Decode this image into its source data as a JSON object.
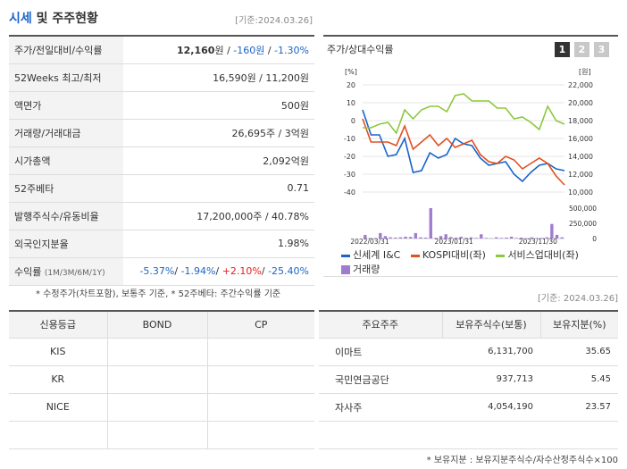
{
  "header": {
    "title_accent": "시세",
    "title_rest": " 및 주주현황",
    "date": "[기준:2024.03.26]"
  },
  "stats": [
    {
      "label": "주가/전일대비/수익률"
    },
    {
      "label": "52Weeks 최고/최저",
      "value": "16,590원 / 11,200원"
    },
    {
      "label": "액면가",
      "value": "500원"
    },
    {
      "label": "거래량/거래대금",
      "value": "26,695주 / 3억원"
    },
    {
      "label": "시가총액",
      "value": "2,092억원"
    },
    {
      "label": "52주베타",
      "value": "0.71"
    },
    {
      "label": "발행주식수/유동비율",
      "value": "17,200,000주 / 40.78%"
    },
    {
      "label": "외국인지분율",
      "value": "1.98%"
    },
    {
      "label": "수익률",
      "sub": "(1M/3M/6M/1Y)"
    }
  ],
  "price_row": {
    "price": "12,160",
    "unit": "원 / ",
    "change": "-160원",
    "sep": " / ",
    "rate": "-1.30%"
  },
  "returns": {
    "r1m": "-5.37%",
    "s1": "/ ",
    "r3m": "-1.94%",
    "s2": "/ ",
    "r6m": "+2.10%",
    "s3": "/ ",
    "r1y": "-25.40%"
  },
  "note_left": "* 수정주가(차트포함), 보통주 기준, * 52주베타: 주간수익률 기준",
  "chart": {
    "label": "주가/상대수익률",
    "tabs": [
      "1",
      "2",
      "3"
    ],
    "active_tab": "1"
  },
  "chart_data": {
    "type": "line",
    "x": [
      "2022/03/31",
      "2022/04/30",
      "2022/05/31",
      "2022/06/30",
      "2022/07/31",
      "2022/08/31",
      "2022/09/30",
      "2022/10/31",
      "2022/11/30",
      "2022/12/31",
      "2023/01/31",
      "2023/02/28",
      "2023/03/31",
      "2023/04/30",
      "2023/05/31",
      "2023/06/30",
      "2023/07/31",
      "2023/08/31",
      "2023/09/30",
      "2023/10/31",
      "2023/11/30",
      "2023/12/31",
      "2024/01/31",
      "2024/02/29",
      "2024/03/26"
    ],
    "x_ticks": [
      "2022/03/31",
      "2023/01/31",
      "2023/11/30"
    ],
    "left_axis": {
      "unit": "[%]",
      "ticks": [
        "20",
        "10",
        "0",
        "-10",
        "-20",
        "-30",
        "-40"
      ],
      "ylim": [
        -40,
        20
      ]
    },
    "right_axis": {
      "unit": "[원]",
      "ticks": [
        "22,000",
        "20,000",
        "18,000",
        "16,000",
        "14,000",
        "12,000",
        "10,000"
      ],
      "ylim": [
        10000,
        22000
      ]
    },
    "volume_axis": {
      "ticks": [
        "500,000",
        "250,000",
        "0"
      ],
      "ylim": [
        0,
        500000
      ]
    },
    "series": [
      {
        "name": "신세계 I&C",
        "color": "#1a64c8",
        "values": [
          6,
          -8,
          -8,
          -20,
          -19,
          -10,
          -29,
          -28,
          -18,
          -21,
          -19,
          -10,
          -13,
          -14,
          -21,
          -25,
          -24,
          -23,
          -30,
          -34,
          -29,
          -25,
          -24,
          -27,
          -28
        ]
      },
      {
        "name": "KOSPI대비(좌)",
        "color": "#e05020",
        "values": [
          1,
          -12,
          -12,
          -12,
          -14,
          -3,
          -16,
          -12,
          -8,
          -14,
          -10,
          -15,
          -13,
          -11,
          -19,
          -23,
          -24,
          -20,
          -22,
          -27,
          -24,
          -21,
          -24,
          -31,
          -36
        ]
      },
      {
        "name": "서비스업대비(좌)",
        "color": "#8cc83c",
        "values": [
          -4,
          -4,
          -2,
          -1,
          -7,
          6,
          1,
          6,
          8,
          8,
          5,
          14,
          15,
          11,
          11,
          11,
          7,
          7,
          1,
          2,
          -1,
          -5,
          8,
          0,
          -2
        ]
      }
    ],
    "volume": {
      "name": "거래량",
      "color": "#a07cd0",
      "values": [
        60000,
        10000,
        5000,
        90000,
        40000,
        20000,
        15000,
        20000,
        30000,
        25000,
        90000,
        20000,
        15000,
        510000,
        10000,
        40000,
        70000,
        25000,
        15000,
        30000,
        10000,
        20000,
        10000,
        70000,
        10000,
        5000,
        20000,
        10000,
        15000,
        30000,
        10000,
        15000,
        5000,
        20000,
        10000,
        10000,
        20000,
        240000,
        60000,
        20000
      ]
    }
  },
  "right_date": "[기준: 2024.03.26]",
  "credit": {
    "headers": [
      "신용등급",
      "BOND",
      "CP"
    ],
    "rows": [
      [
        "KIS",
        "",
        ""
      ],
      [
        "KR",
        "",
        ""
      ],
      [
        "NICE",
        "",
        ""
      ],
      [
        "",
        "",
        ""
      ]
    ]
  },
  "holders": {
    "headers": [
      "주요주주",
      "보유주식수(보통)",
      "보유지분(%)"
    ],
    "rows": [
      [
        "이마트",
        "6,131,700",
        "35.65"
      ],
      [
        "국민연금공단",
        "937,713",
        "5.45"
      ],
      [
        "자사주",
        "4,054,190",
        "23.57"
      ],
      [
        "",
        "",
        ""
      ]
    ]
  },
  "note_right": "* 보유지분 : 보유지분주식수/자수산정주식수×100"
}
